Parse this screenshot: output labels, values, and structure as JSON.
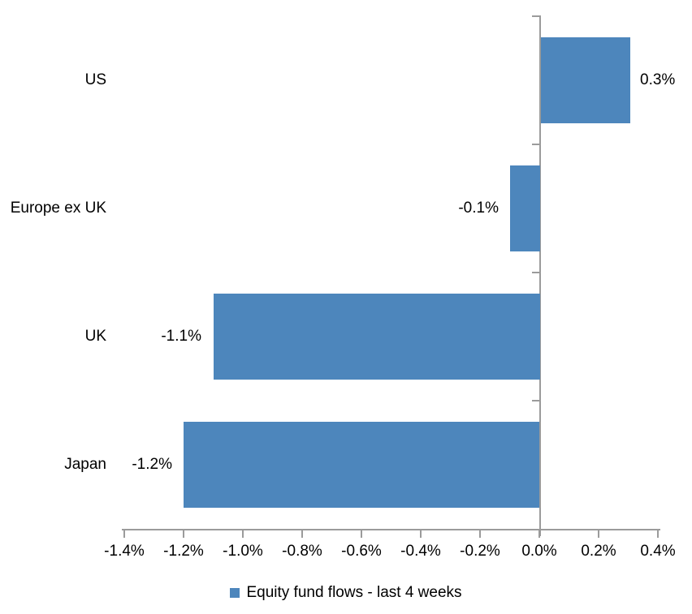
{
  "chart_data": {
    "type": "bar",
    "orientation": "horizontal",
    "title": "",
    "xlabel": "",
    "ylabel": "",
    "categories": [
      "US",
      "Europe ex UK",
      "UK",
      "Japan"
    ],
    "series": [
      {
        "name": "Equity fund flows - last 4 weeks",
        "values": [
          0.3,
          -0.1,
          -1.1,
          -1.2
        ],
        "value_labels": [
          "0.3%",
          "-0.1%",
          "-1.1%",
          "-1.2%"
        ]
      }
    ],
    "xlim": [
      -1.4,
      0.4
    ],
    "x_ticks": [
      -1.4,
      -1.2,
      -1.0,
      -0.8,
      -0.6,
      -0.4,
      -0.2,
      0.0,
      0.2,
      0.4
    ],
    "x_tick_labels": [
      "-1.4%",
      "-1.2%",
      "-1.0%",
      "-0.8%",
      "-0.6%",
      "-0.4%",
      "-0.2%",
      "0.0%",
      "0.2%",
      "0.4%"
    ],
    "grid": false,
    "legend_position": "bottom",
    "legend_label": "Equity fund flows - last 4 weeks",
    "colors": {
      "bar": "#4D86BC",
      "axis": "#9B9B9B",
      "text": "#000000",
      "background": "#ffffff"
    }
  }
}
